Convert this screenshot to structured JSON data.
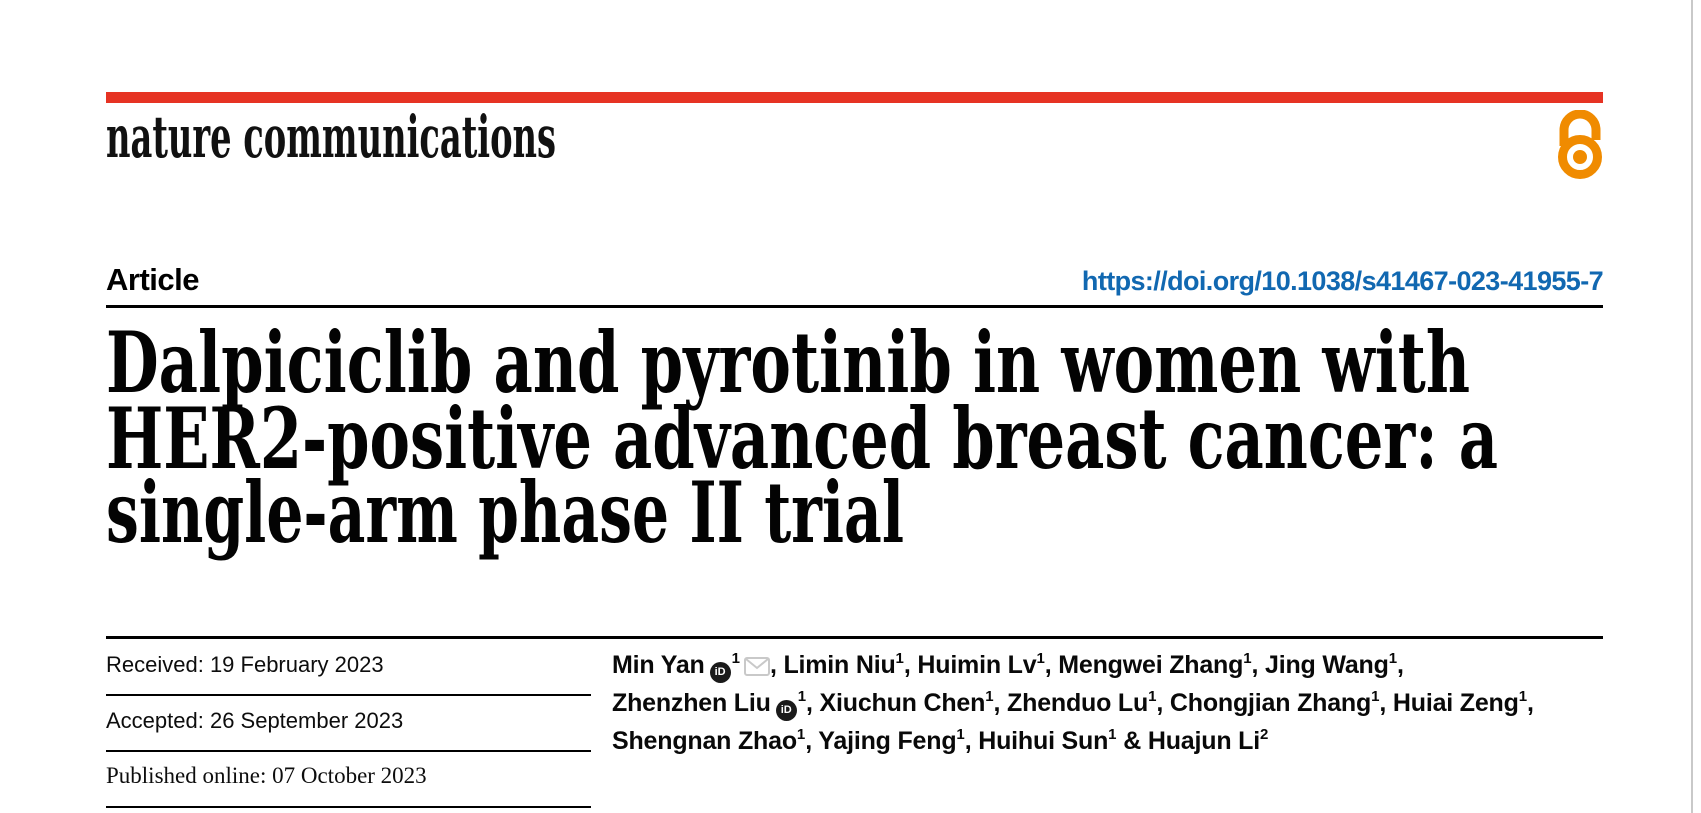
{
  "journal": {
    "wordmark": "nature communications"
  },
  "header": {
    "article_label": "Article",
    "doi": "https://doi.org/10.1038/s41467-023-41955-7"
  },
  "title": {
    "lines": [
      "Dalpiciclib and pyrotinib in women with",
      "HER2-positive advanced breast cancer: a",
      "single-arm phase II trial"
    ]
  },
  "history": [
    {
      "text": "Received: 19 February 2023"
    },
    {
      "text": "Accepted: 26 September 2023"
    },
    {
      "text": "Published online: 07 October 2023"
    }
  ],
  "authors": {
    "lines": [
      [
        {
          "name": "Min Yan",
          "orcid": true,
          "sup": "1",
          "email": true,
          "after": ", "
        },
        {
          "name": "Limin Niu",
          "sup": "1",
          "after": ", "
        },
        {
          "name": "Huimin Lv",
          "sup": "1",
          "after": ", "
        },
        {
          "name": "Mengwei Zhang",
          "sup": "1",
          "after": ", "
        },
        {
          "name": "Jing Wang",
          "sup": "1",
          "after": ","
        }
      ],
      [
        {
          "name": "Zhenzhen Liu",
          "orcid": true,
          "sup": "1",
          "after": ", "
        },
        {
          "name": "Xiuchun Chen",
          "sup": "1",
          "after": ", "
        },
        {
          "name": "Zhenduo Lu",
          "sup": "1",
          "after": ", "
        },
        {
          "name": "Chongjian Zhang",
          "sup": "1",
          "after": ", "
        },
        {
          "name": "Huiai Zeng",
          "sup": "1",
          "after": ","
        }
      ],
      [
        {
          "name": "Shengnan Zhao",
          "sup": "1",
          "after": ", "
        },
        {
          "name": "Yajing Feng",
          "sup": "1",
          "after": ", "
        },
        {
          "name": "Huihui Sun",
          "sup": "1",
          "after": " & "
        },
        {
          "name": "Huajun Li",
          "sup": "2",
          "after": ""
        }
      ]
    ]
  },
  "icons": {
    "orcid_label": "iD",
    "orcid": "orcid-icon",
    "email": "envelope-icon",
    "open_access": "open-access-lock-icon"
  },
  "colors": {
    "brand_red": "#e63323",
    "link_blue": "#1168b1",
    "open_access_orange": "#f08b00",
    "envelope_gray": "#c9c9c9"
  }
}
